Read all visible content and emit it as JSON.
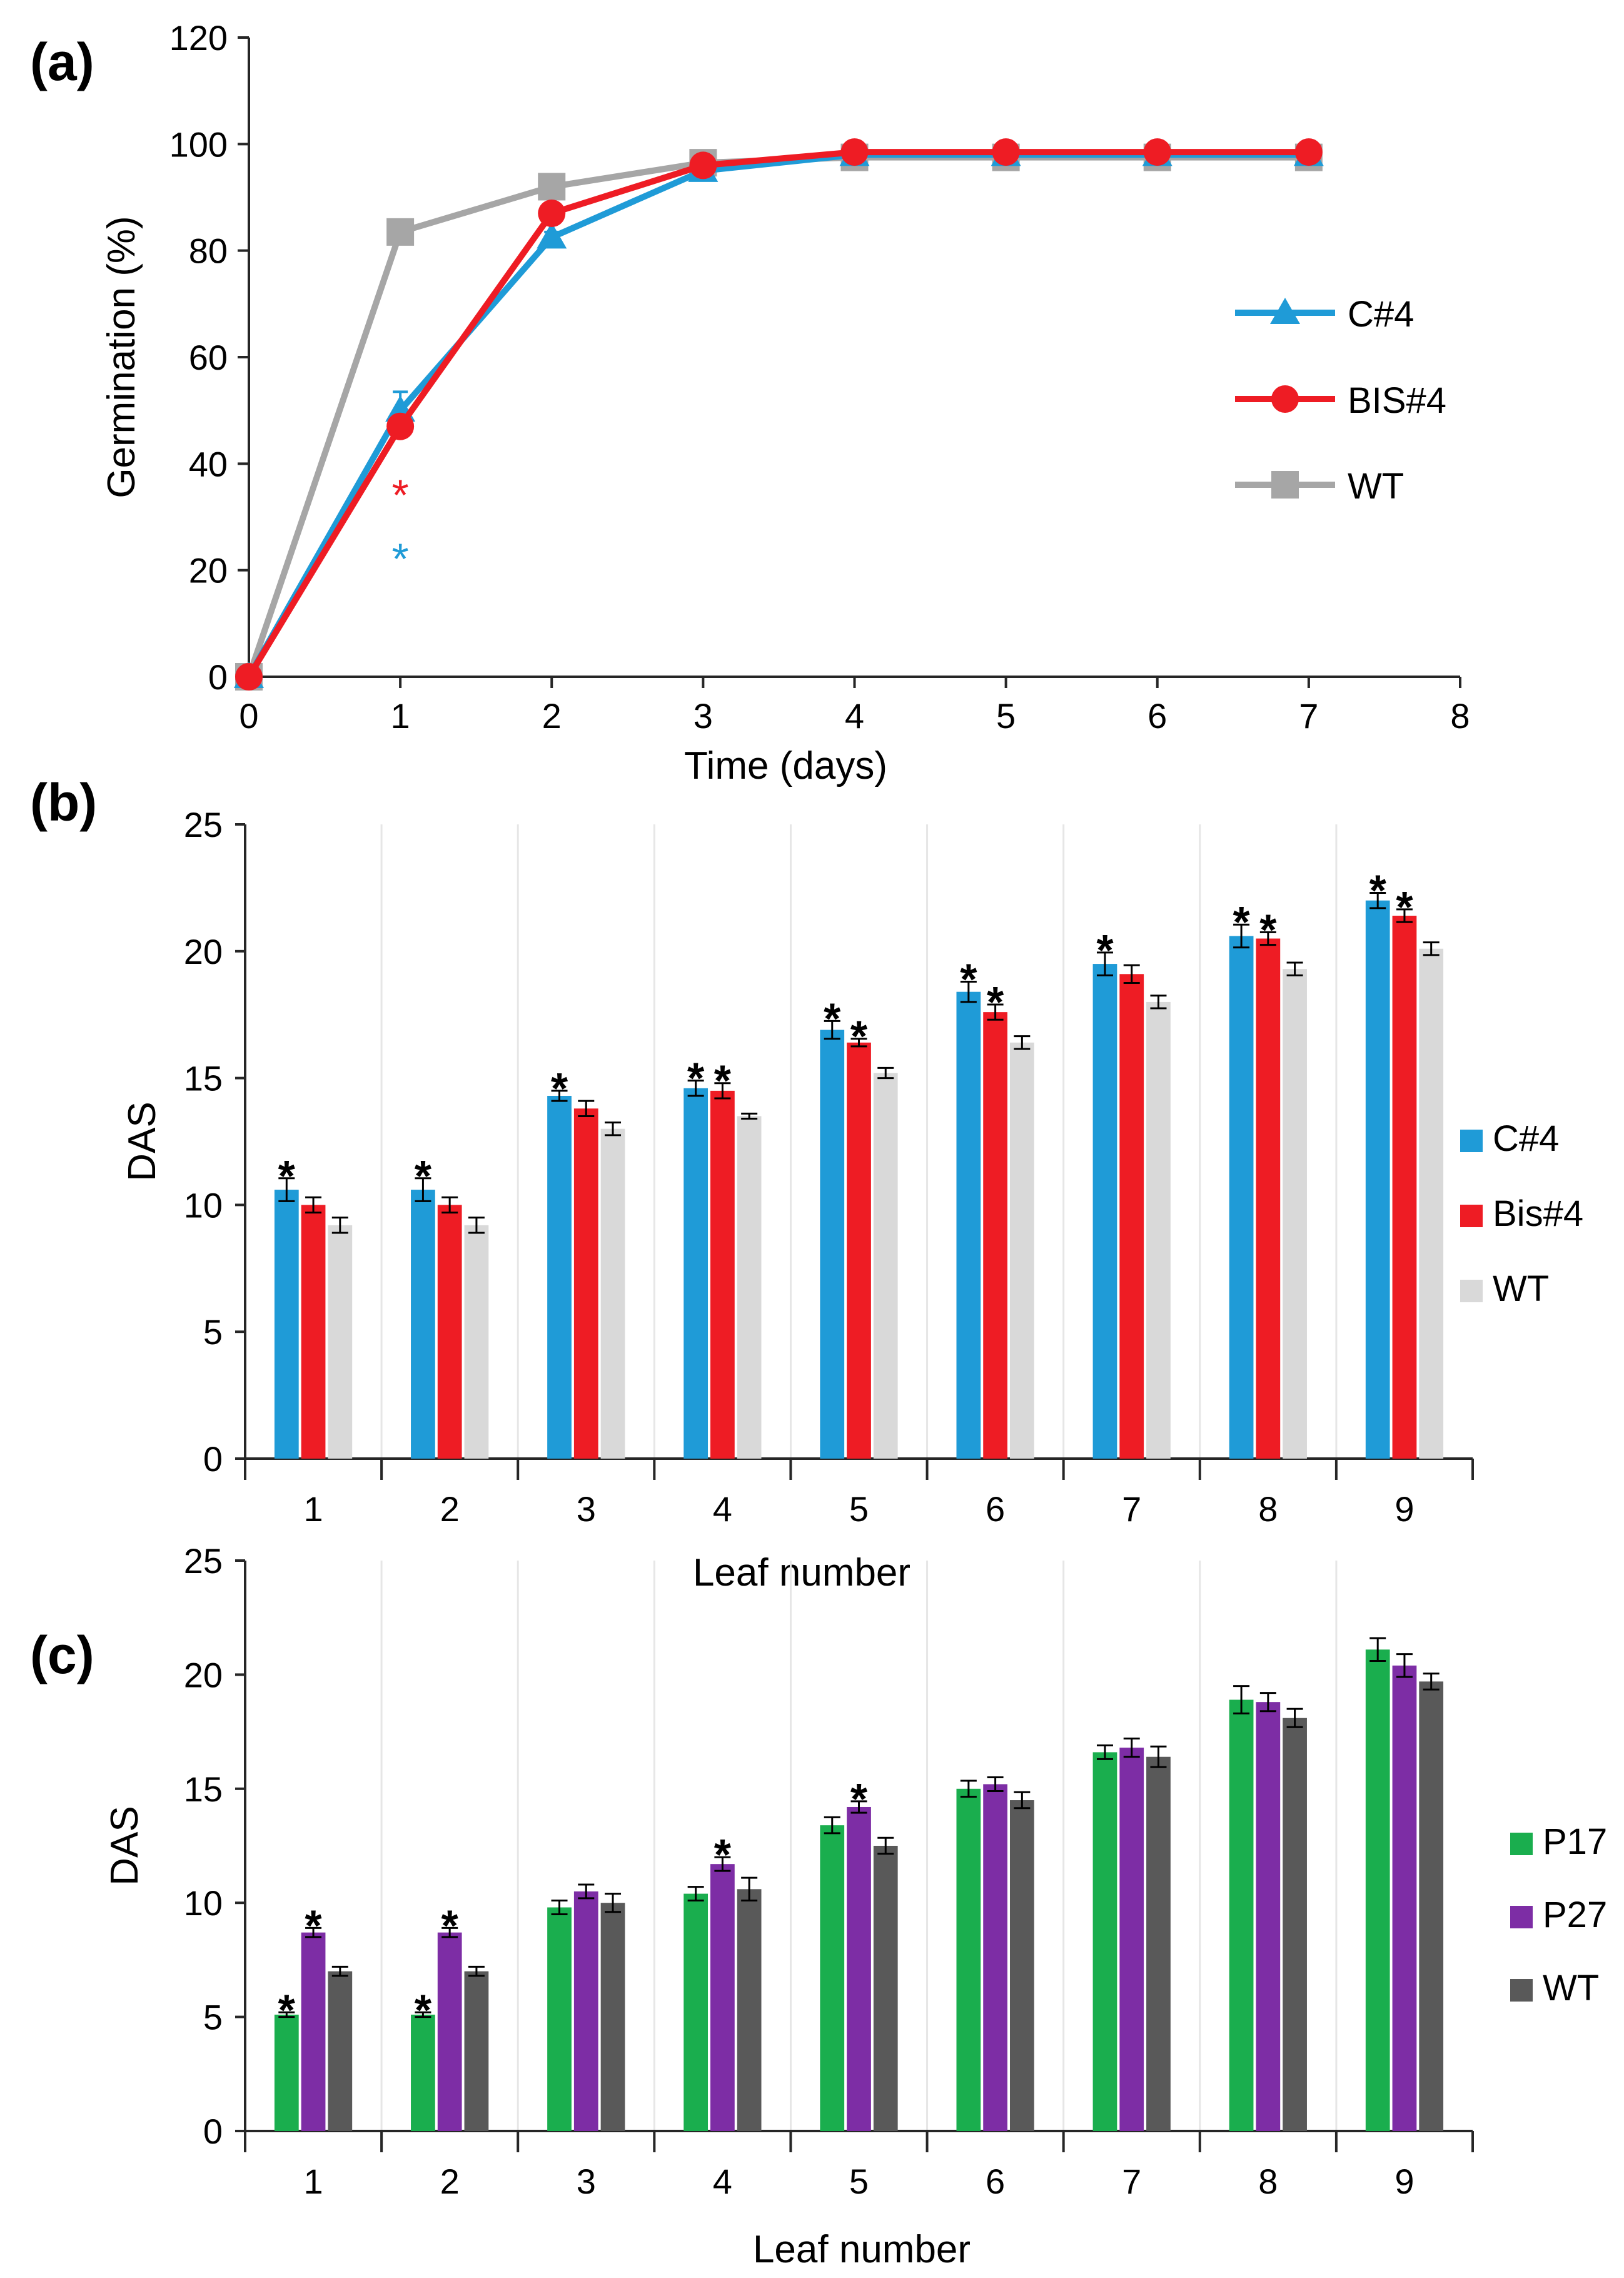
{
  "colors": {
    "c4": "#1F9BD7",
    "bis4": "#EE1C24",
    "wt_a": "#A6A6A6",
    "wt_b": "#D9D9D9",
    "p17": "#1AAE4E",
    "p27": "#7D2DA5",
    "wt_c": "#595959",
    "axis": "#262626",
    "grid": "#E6E6E6"
  },
  "chart_data": [
    {
      "panel": "(a)",
      "type": "line",
      "title": "",
      "xlabel": "Time (days)",
      "ylabel": "Germination (%)",
      "xlim": [
        0,
        8
      ],
      "ylim": [
        0,
        120
      ],
      "xticks": [
        "0",
        "1",
        "2",
        "3",
        "4",
        "5",
        "6",
        "7",
        "8"
      ],
      "yticks": [
        "0",
        "20",
        "40",
        "60",
        "80",
        "100",
        "120"
      ],
      "x": [
        0,
        1,
        2,
        3,
        4,
        5,
        6,
        7
      ],
      "series": [
        {
          "name": "C#4",
          "marker": "triangle",
          "color": "#1F9BD7",
          "values": [
            0,
            50,
            82.5,
            95,
            98,
            98,
            98,
            98
          ],
          "errors": [
            0,
            3.5,
            1,
            1,
            0.5,
            0.5,
            0.5,
            0.5
          ]
        },
        {
          "name": "BIS#4",
          "marker": "circle",
          "color": "#EE1C24",
          "values": [
            0,
            47,
            87,
            96,
            98.5,
            98.5,
            98.5,
            98.5
          ],
          "errors": [
            0,
            2,
            1,
            1,
            0.5,
            0.5,
            0.5,
            0.5
          ]
        },
        {
          "name": "WT",
          "marker": "square",
          "color": "#A6A6A6",
          "values": [
            0,
            83.5,
            92,
            96.5,
            97.5,
            97.5,
            97.5,
            97.5
          ],
          "errors": [
            0,
            1,
            1,
            1,
            0.5,
            0.5,
            0.5,
            0.5
          ]
        }
      ],
      "annotations": [
        {
          "text": "*",
          "x": 1,
          "y": 36,
          "color": "#EE1C24"
        },
        {
          "text": "*",
          "x": 1,
          "y": 24,
          "color": "#1F9BD7"
        }
      ],
      "legend": "right"
    },
    {
      "panel": "(b)",
      "type": "bar",
      "title": "",
      "xlabel": "Leaf number",
      "ylabel": "DAS",
      "ylim": [
        0,
        25
      ],
      "yticks": [
        "0",
        "5",
        "10",
        "15",
        "20",
        "25"
      ],
      "categories": [
        "1",
        "2",
        "3",
        "4",
        "5",
        "6",
        "7",
        "8",
        "9"
      ],
      "series": [
        {
          "name": "C#4",
          "color": "#1F9BD7",
          "values": [
            10.6,
            10.6,
            14.3,
            14.6,
            16.9,
            18.4,
            19.5,
            20.6,
            22.0
          ],
          "errors": [
            0.45,
            0.45,
            0.2,
            0.3,
            0.35,
            0.4,
            0.45,
            0.45,
            0.3
          ],
          "significant": [
            true,
            true,
            true,
            true,
            true,
            true,
            true,
            true,
            true
          ]
        },
        {
          "name": "Bis#4",
          "color": "#EE1C24",
          "values": [
            10.0,
            10.0,
            13.8,
            14.5,
            16.4,
            17.6,
            19.1,
            20.5,
            21.4
          ],
          "errors": [
            0.3,
            0.3,
            0.3,
            0.3,
            0.15,
            0.3,
            0.35,
            0.25,
            0.25
          ],
          "significant": [
            false,
            false,
            false,
            true,
            true,
            true,
            false,
            true,
            true
          ]
        },
        {
          "name": "WT",
          "color": "#D9D9D9",
          "values": [
            9.2,
            9.2,
            13.0,
            13.5,
            15.2,
            16.4,
            18.0,
            19.3,
            20.1
          ],
          "errors": [
            0.3,
            0.3,
            0.25,
            0.1,
            0.2,
            0.25,
            0.25,
            0.25,
            0.25
          ],
          "significant": [
            false,
            false,
            false,
            false,
            false,
            false,
            false,
            false,
            false
          ]
        }
      ],
      "legend": "right"
    },
    {
      "panel": "(c)",
      "type": "bar",
      "title": "",
      "xlabel": "Leaf number",
      "ylabel": "DAS",
      "ylim": [
        0,
        25
      ],
      "yticks": [
        "0",
        "5",
        "10",
        "15",
        "20",
        "25"
      ],
      "categories": [
        "1",
        "2",
        "3",
        "4",
        "5",
        "6",
        "7",
        "8",
        "9"
      ],
      "series": [
        {
          "name": "P17",
          "color": "#1AAE4E",
          "values": [
            5.1,
            5.1,
            9.8,
            10.4,
            13.4,
            15.0,
            16.6,
            18.9,
            21.1
          ],
          "errors": [
            0.1,
            0.1,
            0.3,
            0.3,
            0.35,
            0.35,
            0.3,
            0.6,
            0.5
          ],
          "significant": [
            true,
            true,
            false,
            false,
            false,
            false,
            false,
            false,
            false
          ]
        },
        {
          "name": "P27",
          "color": "#7D2DA5",
          "values": [
            8.7,
            8.7,
            10.5,
            11.7,
            14.2,
            15.2,
            16.8,
            18.8,
            20.4
          ],
          "errors": [
            0.2,
            0.2,
            0.3,
            0.3,
            0.25,
            0.3,
            0.4,
            0.4,
            0.5
          ],
          "significant": [
            true,
            true,
            false,
            true,
            true,
            false,
            false,
            false,
            false
          ]
        },
        {
          "name": "WT",
          "color": "#595959",
          "values": [
            7.0,
            7.0,
            10.0,
            10.6,
            12.5,
            14.5,
            16.4,
            18.1,
            19.7
          ],
          "errors": [
            0.2,
            0.2,
            0.4,
            0.5,
            0.35,
            0.35,
            0.45,
            0.4,
            0.35
          ],
          "significant": [
            false,
            false,
            false,
            false,
            false,
            false,
            false,
            false,
            false
          ]
        }
      ],
      "legend": "right"
    }
  ]
}
